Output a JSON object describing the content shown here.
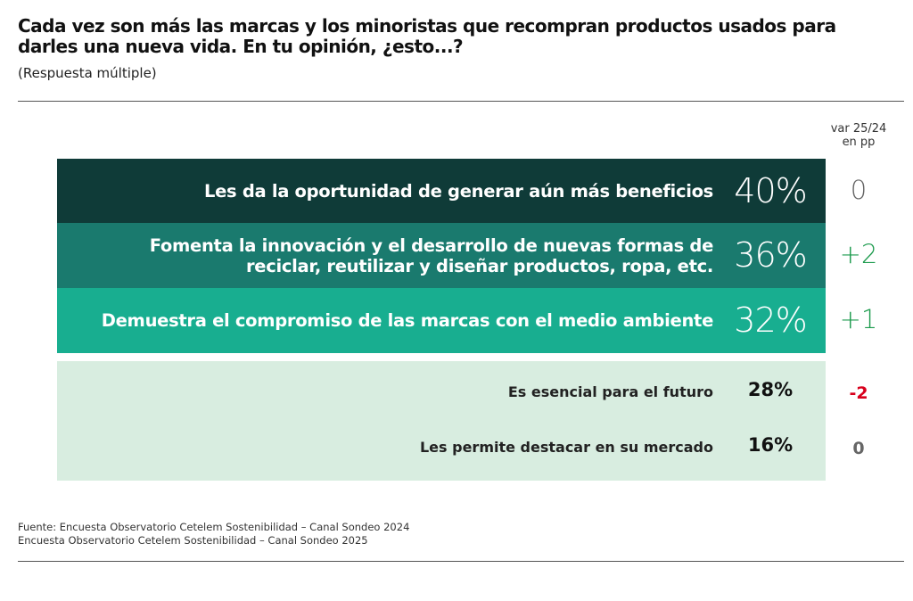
{
  "header": {
    "title": "Cada vez son más las marcas y los minoristas que recompran productos usados para darles una nueva vida. En tu opinión, ¿esto...?",
    "subtitle": "(Respuesta múltiple)"
  },
  "variation_header": {
    "line1": "var 25/24",
    "line2": "en pp"
  },
  "chart_data": {
    "type": "bar",
    "orientation": "horizontal",
    "title": "Cada vez son más las marcas y los minoristas que recompran productos usados para darles una nueva vida. En tu opinión, ¿esto...?",
    "unit": "%",
    "rows": [
      {
        "label_lines": [
          "Les da la oportunidad de generar aún más beneficios"
        ],
        "value": 40,
        "value_label": "40%",
        "var_label": "0",
        "var_value": 0
      },
      {
        "label_lines": [
          "Fomenta la innovación y el desarrollo de nuevas formas de",
          "reciclar, reutilizar y diseñar productos, ropa, etc."
        ],
        "value": 36,
        "value_label": "36%",
        "var_label": "+2",
        "var_value": 2
      },
      {
        "label_lines": [
          "Demuestra el compromiso de las marcas con el medio ambiente"
        ],
        "value": 32,
        "value_label": "32%",
        "var_label": "+1",
        "var_value": 1
      },
      {
        "label_lines": [
          "Es esencial para el futuro"
        ],
        "value": 28,
        "value_label": "28%",
        "var_label": "-2",
        "var_value": -2
      },
      {
        "label_lines": [
          "Les permite destacar en su mercado"
        ],
        "value": 16,
        "value_label": "16%",
        "var_label": "0",
        "var_value": 0
      }
    ]
  },
  "colors": {
    "bar_1": "#0f3b38",
    "bar_2": "#1a7a6e",
    "bar_3": "#18ae90",
    "panel_small": "#d8ede0",
    "var_neutral": "#666666",
    "var_positive": "#1b9a4c",
    "var_negative": "#d8001c"
  },
  "source": {
    "line1": "Fuente: Encuesta Observatorio Cetelem Sostenibilidad – Canal Sondeo 2024",
    "line2": "Encuesta Observatorio Cetelem Sostenibilidad – Canal Sondeo 2025"
  }
}
